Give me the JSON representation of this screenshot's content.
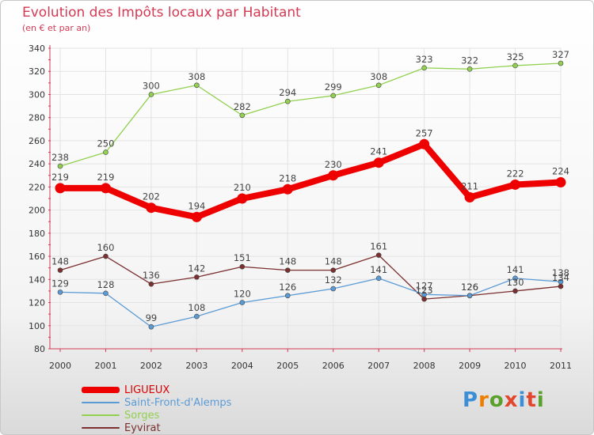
{
  "header": {
    "title": "Evolution des Impôts locaux par Habitant",
    "subtitle": "(en € et par an)"
  },
  "logo": {
    "text": "Proxiti"
  },
  "colors": {
    "accent": "#d33a54",
    "axis_text": "#333333",
    "grid": "#e3e3e3"
  },
  "chart_data": {
    "type": "line",
    "title": "Evolution des Impôts locaux par Habitant",
    "subtitle": "(en € et par an)",
    "xlabel": "",
    "ylabel": "",
    "x": [
      "2000",
      "2001",
      "2002",
      "2003",
      "2004",
      "2005",
      "2006",
      "2007",
      "2008",
      "2009",
      "2010",
      "2011"
    ],
    "ylim": [
      80,
      340
    ],
    "yticks": [
      80,
      100,
      120,
      140,
      160,
      180,
      200,
      220,
      240,
      260,
      280,
      300,
      320,
      340
    ],
    "grid": true,
    "legend_position": "bottom-left",
    "series": [
      {
        "name": "LIGUEUX",
        "color": "#ee0000",
        "values": [
          219,
          219,
          202,
          194,
          210,
          218,
          230,
          241,
          257,
          211,
          222,
          224
        ]
      },
      {
        "name": "Saint-Front-d'Alemps",
        "color": "#5b9bd5",
        "values": [
          129,
          128,
          99,
          108,
          120,
          126,
          132,
          141,
          127,
          126,
          141,
          138
        ]
      },
      {
        "name": "Sorges",
        "color": "#92d050",
        "values": [
          238,
          250,
          300,
          308,
          282,
          294,
          299,
          308,
          323,
          322,
          325,
          327
        ]
      },
      {
        "name": "Eyvirat",
        "color": "#7b2f2f",
        "values": [
          148,
          160,
          136,
          142,
          151,
          148,
          148,
          161,
          123,
          126,
          130,
          134
        ]
      }
    ]
  }
}
